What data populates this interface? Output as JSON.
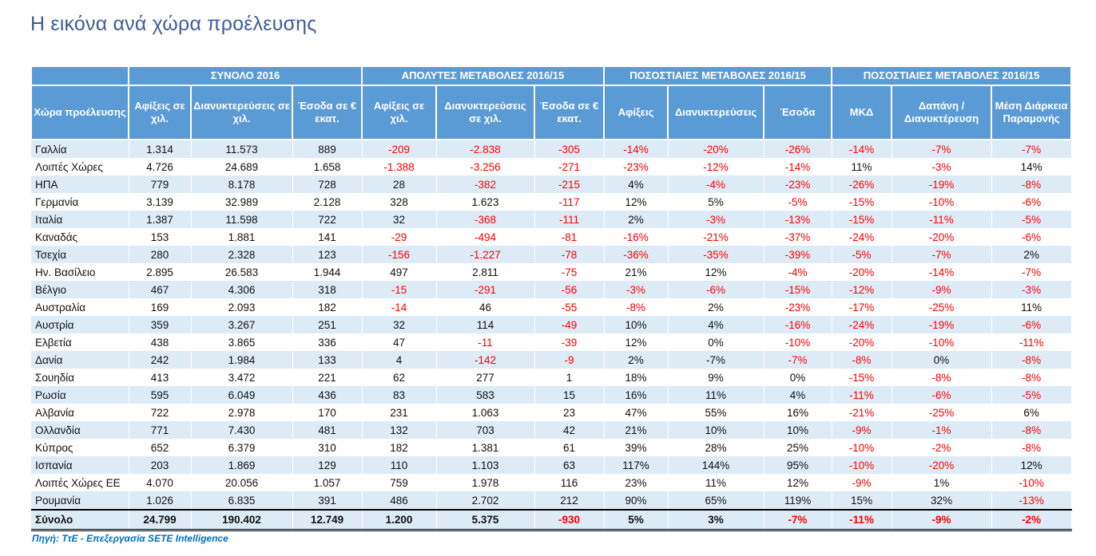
{
  "page": {
    "title": "Η εικόνα ανά χώρα προέλευσης",
    "source": "Πηγή: ΤτΕ - Επεξεργασία SETE Intelligence"
  },
  "colors": {
    "header_bg": "#5B9BD5",
    "stripe_bg": "#DDEBF7",
    "negative": "#FF0000",
    "title": "#3E5C96",
    "source": "#0070C0"
  },
  "table": {
    "col_groups": [
      {
        "label": "",
        "span": 1
      },
      {
        "label": "ΣΥΝΟΛΟ 2016",
        "span": 3
      },
      {
        "label": "ΑΠΟΛΥΤΕΣ ΜΕΤΑΒΟΛΕΣ 2016/15",
        "span": 3
      },
      {
        "label": "ΠΟΣΟΣΤΙΑΙΕΣ ΜΕΤΑΒΟΛΕΣ 2016/15",
        "span": 3
      },
      {
        "label": "ΠΟΣΟΣΤΙΑΙΕΣ ΜΕΤΑΒΟΛΕΣ 2016/15",
        "span": 3
      }
    ],
    "columns": [
      "Χώρα προέλευσης",
      "Αφίξεις σε χιλ.",
      "Διανυκτερεύσεις σε χιλ.",
      "Έσοδα σε € εκατ.",
      "Αφίξεις σε χιλ.",
      "Διανυκτερεύσεις σε χιλ.",
      "Έσοδα σε € εκατ.",
      "Αφίξεις",
      "Διανυκτερεύσεις",
      "Έσοδα",
      "ΜΚΔ",
      "Δαπάνη / Διανυκτέρευση",
      "Μέση Διάρκεια Παραμονής"
    ],
    "rows": [
      {
        "country": "Γαλλία",
        "values": [
          "1.314",
          "11.573",
          "889",
          "-209",
          "-2.838",
          "-305",
          "-14%",
          "-20%",
          "-26%",
          "-14%",
          "-7%",
          "-7%"
        ],
        "red": [
          0,
          0,
          0,
          1,
          1,
          1,
          1,
          1,
          1,
          1,
          1,
          1
        ]
      },
      {
        "country": "Λοιπές Χώρες",
        "values": [
          "4.726",
          "24.689",
          "1.658",
          "-1.388",
          "-3.256",
          "-271",
          "-23%",
          "-12%",
          "-14%",
          "11%",
          "-3%",
          "14%"
        ],
        "red": [
          0,
          0,
          0,
          1,
          1,
          1,
          1,
          1,
          1,
          0,
          1,
          0
        ]
      },
      {
        "country": "ΗΠΑ",
        "values": [
          "779",
          "8.178",
          "728",
          "28",
          "-382",
          "-215",
          "4%",
          "-4%",
          "-23%",
          "-26%",
          "-19%",
          "-8%"
        ],
        "red": [
          0,
          0,
          0,
          0,
          1,
          1,
          0,
          1,
          1,
          1,
          1,
          1
        ]
      },
      {
        "country": "Γερμανία",
        "values": [
          "3.139",
          "32.989",
          "2.128",
          "328",
          "1.623",
          "-117",
          "12%",
          "5%",
          "-5%",
          "-15%",
          "-10%",
          "-6%"
        ],
        "red": [
          0,
          0,
          0,
          0,
          0,
          1,
          0,
          0,
          1,
          1,
          1,
          1
        ]
      },
      {
        "country": "Ιταλία",
        "values": [
          "1.387",
          "11.598",
          "722",
          "32",
          "-368",
          "-111",
          "2%",
          "-3%",
          "-13%",
          "-15%",
          "-11%",
          "-5%"
        ],
        "red": [
          0,
          0,
          0,
          0,
          1,
          1,
          0,
          1,
          1,
          1,
          1,
          1
        ]
      },
      {
        "country": "Καναδάς",
        "values": [
          "153",
          "1.881",
          "141",
          "-29",
          "-494",
          "-81",
          "-16%",
          "-21%",
          "-37%",
          "-24%",
          "-20%",
          "-6%"
        ],
        "red": [
          0,
          0,
          0,
          1,
          1,
          1,
          1,
          1,
          1,
          1,
          1,
          1
        ]
      },
      {
        "country": "Τσεχία",
        "values": [
          "280",
          "2.328",
          "123",
          "-156",
          "-1.227",
          "-78",
          "-36%",
          "-35%",
          "-39%",
          "-5%",
          "-7%",
          "2%"
        ],
        "red": [
          0,
          0,
          0,
          1,
          1,
          1,
          1,
          1,
          1,
          1,
          1,
          0
        ]
      },
      {
        "country": "Ην. Βασίλειο",
        "values": [
          "2.895",
          "26.583",
          "1.944",
          "497",
          "2.811",
          "-75",
          "21%",
          "12%",
          "-4%",
          "-20%",
          "-14%",
          "-7%"
        ],
        "red": [
          0,
          0,
          0,
          0,
          0,
          1,
          0,
          0,
          1,
          1,
          1,
          1
        ]
      },
      {
        "country": "Βέλγιο",
        "values": [
          "467",
          "4.306",
          "318",
          "-15",
          "-291",
          "-56",
          "-3%",
          "-6%",
          "-15%",
          "-12%",
          "-9%",
          "-3%"
        ],
        "red": [
          0,
          0,
          0,
          1,
          1,
          1,
          1,
          1,
          1,
          1,
          1,
          1
        ]
      },
      {
        "country": "Αυστραλία",
        "values": [
          "169",
          "2.093",
          "182",
          "-14",
          "46",
          "-55",
          "-8%",
          "2%",
          "-23%",
          "-17%",
          "-25%",
          "11%"
        ],
        "red": [
          0,
          0,
          0,
          1,
          0,
          1,
          1,
          0,
          1,
          1,
          1,
          0
        ]
      },
      {
        "country": "Αυστρία",
        "values": [
          "359",
          "3.267",
          "251",
          "32",
          "114",
          "-49",
          "10%",
          "4%",
          "-16%",
          "-24%",
          "-19%",
          "-6%"
        ],
        "red": [
          0,
          0,
          0,
          0,
          0,
          1,
          0,
          0,
          1,
          1,
          1,
          1
        ]
      },
      {
        "country": "Ελβετία",
        "values": [
          "438",
          "3.865",
          "336",
          "47",
          "-11",
          "-39",
          "12%",
          "0%",
          "-10%",
          "-20%",
          "-10%",
          "-11%"
        ],
        "red": [
          0,
          0,
          0,
          0,
          1,
          1,
          0,
          0,
          1,
          1,
          1,
          1
        ]
      },
      {
        "country": "Δανία",
        "values": [
          "242",
          "1.984",
          "133",
          "4",
          "-142",
          "-9",
          "2%",
          "-7%",
          "-7%",
          "-8%",
          "0%",
          "-8%"
        ],
        "red": [
          0,
          0,
          0,
          0,
          1,
          1,
          0,
          0,
          1,
          1,
          0,
          1
        ]
      },
      {
        "country": "Σουηδία",
        "values": [
          "413",
          "3.472",
          "221",
          "62",
          "277",
          "1",
          "18%",
          "9%",
          "0%",
          "-15%",
          "-8%",
          "-8%"
        ],
        "red": [
          0,
          0,
          0,
          0,
          0,
          0,
          0,
          0,
          0,
          1,
          1,
          1
        ]
      },
      {
        "country": "Ρωσία",
        "values": [
          "595",
          "6.049",
          "436",
          "83",
          "583",
          "15",
          "16%",
          "11%",
          "4%",
          "-11%",
          "-6%",
          "-5%"
        ],
        "red": [
          0,
          0,
          0,
          0,
          0,
          0,
          0,
          0,
          0,
          1,
          1,
          1
        ]
      },
      {
        "country": "Αλβανία",
        "values": [
          "722",
          "2.978",
          "170",
          "231",
          "1.063",
          "23",
          "47%",
          "55%",
          "16%",
          "-21%",
          "-25%",
          "6%"
        ],
        "red": [
          0,
          0,
          0,
          0,
          0,
          0,
          0,
          0,
          0,
          1,
          1,
          0
        ]
      },
      {
        "country": "Ολλανδία",
        "values": [
          "771",
          "7.430",
          "481",
          "132",
          "703",
          "42",
          "21%",
          "10%",
          "10%",
          "-9%",
          "-1%",
          "-8%"
        ],
        "red": [
          0,
          0,
          0,
          0,
          0,
          0,
          0,
          0,
          0,
          1,
          1,
          1
        ]
      },
      {
        "country": "Κύπρος",
        "values": [
          "652",
          "6.379",
          "310",
          "182",
          "1.381",
          "61",
          "39%",
          "28%",
          "25%",
          "-10%",
          "-2%",
          "-8%"
        ],
        "red": [
          0,
          0,
          0,
          0,
          0,
          0,
          0,
          0,
          0,
          1,
          1,
          1
        ]
      },
      {
        "country": "Ισπανία",
        "values": [
          "203",
          "1.869",
          "129",
          "110",
          "1.103",
          "63",
          "117%",
          "144%",
          "95%",
          "-10%",
          "-20%",
          "12%"
        ],
        "red": [
          0,
          0,
          0,
          0,
          0,
          0,
          0,
          0,
          0,
          1,
          1,
          0
        ]
      },
      {
        "country": "Λοιπές Χώρες ΕΕ",
        "values": [
          "4.070",
          "20.056",
          "1.057",
          "759",
          "1.978",
          "116",
          "23%",
          "11%",
          "12%",
          "-9%",
          "1%",
          "-10%"
        ],
        "red": [
          0,
          0,
          0,
          0,
          0,
          0,
          0,
          0,
          0,
          1,
          0,
          1
        ]
      },
      {
        "country": "Ρουμανία",
        "values": [
          "1.026",
          "6.835",
          "391",
          "486",
          "2.702",
          "212",
          "90%",
          "65%",
          "119%",
          "15%",
          "32%",
          "-13%"
        ],
        "red": [
          0,
          0,
          0,
          0,
          0,
          0,
          0,
          0,
          0,
          0,
          0,
          1
        ]
      }
    ],
    "total": {
      "country": "Σύνολο",
      "values": [
        "24.799",
        "190.402",
        "12.749",
        "1.200",
        "5.375",
        "-930",
        "5%",
        "3%",
        "-7%",
        "-11%",
        "-9%",
        "-2%"
      ],
      "red": [
        0,
        0,
        0,
        0,
        0,
        1,
        0,
        0,
        1,
        1,
        1,
        1
      ]
    }
  }
}
